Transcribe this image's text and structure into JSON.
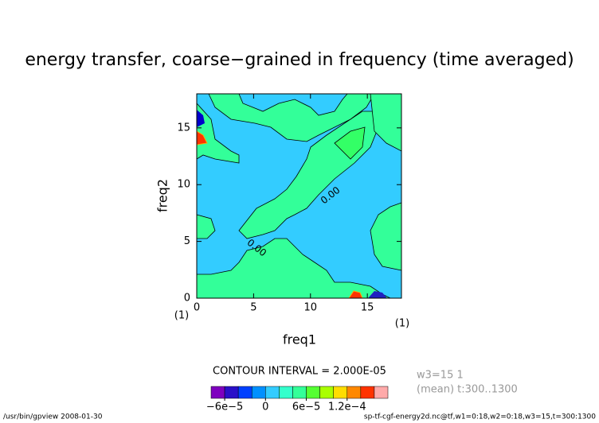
{
  "chart_data": {
    "type": "contour",
    "title": "energy transfer, coarse−grained in frequency (time averaged)",
    "x_label": "freq1",
    "y_label": "freq2",
    "xlim": [
      0,
      18
    ],
    "ylim": [
      0,
      18
    ],
    "xticks": [
      0,
      5,
      10,
      15
    ],
    "yticks": [
      0,
      5,
      10,
      15
    ],
    "x_unit": "(1)",
    "y_unit": "(1)",
    "contour_labels": [
      "0.00",
      "0.00"
    ],
    "contour_interval": "CONTOUR INTERVAL = 2.000E-05",
    "colorbar": {
      "lim": [
        -8e-05,
        0.00018
      ],
      "colors": [
        "#7f00bf",
        "#2a10c8",
        "#0040ff",
        "#0090ff",
        "#33ccff",
        "#33ffcc",
        "#33ff99",
        "#55ff33",
        "#aaff00",
        "#ffdd00",
        "#ff8800",
        "#ff3300",
        "#ffaaaa"
      ],
      "ticks": [
        {
          "value": -6e-05,
          "label": "−6e−5"
        },
        0,
        {
          "value": 6e-05,
          "label": "6e−5"
        },
        {
          "value": 0.00012,
          "label": "1.2e−4"
        }
      ]
    },
    "info": [
      "w3=15 1",
      "(mean) t:300..1300"
    ],
    "footer_left": "/usr/bin/gpview  2008-01-30",
    "footer_right": "sp-tf-cgf-energy2d.nc@tf,w1=0:18,w2=0:18,w3=15,t=300:1300"
  }
}
